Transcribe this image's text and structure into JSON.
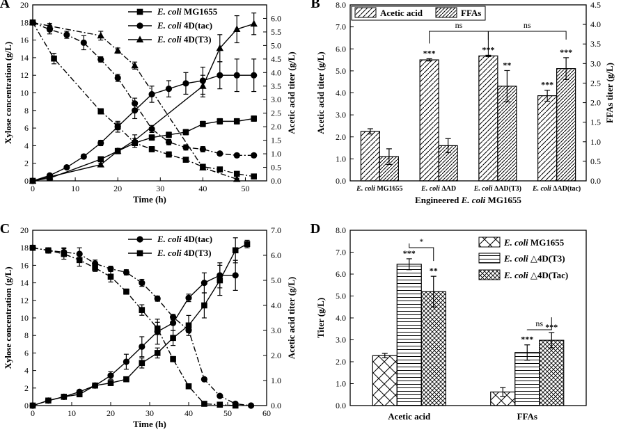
{
  "chart_data": [
    {
      "type": "line",
      "panel_label": "A",
      "xlabel": "Time (h)",
      "ylabel": "Xylose concentration (g/L)",
      "y2label": "Acetic acid titer (g/L)",
      "xlim": [
        0,
        55
      ],
      "ylim": [
        0,
        20
      ],
      "y2lim": [
        0,
        6.5
      ],
      "xticks": [
        0,
        10,
        20,
        30,
        40,
        50
      ],
      "yticks": [
        0,
        2,
        4,
        6,
        8,
        10,
        12,
        14,
        16,
        18,
        20
      ],
      "y2ticks": [
        0.0,
        0.5,
        1.0,
        1.5,
        2.0,
        2.5,
        3.0,
        3.5,
        4.0,
        4.5,
        5.0,
        5.5,
        6.0
      ],
      "legend": [
        {
          "label": "E. coli MG1655",
          "marker": "square"
        },
        {
          "label": "E. coli 4D(tac)",
          "marker": "circle"
        },
        {
          "label": "E. coli 4D(T3)",
          "marker": "triangle"
        }
      ],
      "xylose_series": [
        {
          "name": "E. coli MG1655",
          "marker": "square",
          "x": [
            0,
            5,
            16,
            20,
            24,
            28,
            32,
            36,
            40,
            44,
            48,
            52
          ],
          "y": [
            18,
            13.9,
            7.9,
            6.2,
            4.3,
            3.6,
            3.0,
            2.4,
            1.6,
            1.3,
            0.8,
            0.5
          ],
          "err": [
            0,
            0.6,
            0.3,
            0.4,
            0.5,
            0.3,
            0.3,
            0.2,
            0.2,
            0.1,
            0.1,
            0.1
          ]
        },
        {
          "name": "E. coli 4D(tac)",
          "marker": "circle",
          "x": [
            0,
            4,
            8,
            12,
            16,
            20,
            24,
            28,
            32,
            36,
            40,
            44,
            48,
            52
          ],
          "y": [
            18,
            17.2,
            16.6,
            15.7,
            13.8,
            11.7,
            8.8,
            5.9,
            4.4,
            3.8,
            3.6,
            3.1,
            2.9,
            2.9
          ],
          "err": [
            0,
            0.5,
            0.4,
            0.8,
            0.3,
            0.4,
            0.6,
            0.4,
            0.3,
            0.3,
            0.3,
            0.2,
            0.2,
            0.2
          ]
        },
        {
          "name": "E. coli 4D(T3)",
          "marker": "triangle",
          "x": [
            0,
            4,
            16,
            20,
            24,
            40,
            48
          ],
          "y": [
            18,
            17.6,
            16.5,
            14.8,
            13.1,
            1.5,
            0.2
          ],
          "err": [
            0,
            0.3,
            0.5,
            0.3,
            0.4,
            0.2,
            0.1
          ]
        }
      ],
      "acetic_series": [
        {
          "name": "E. coli MG1655",
          "marker": "square",
          "x": [
            0,
            4,
            16,
            20,
            24,
            28,
            32,
            36,
            40,
            44,
            48,
            52
          ],
          "y": [
            0,
            0.1,
            0.8,
            1.1,
            1.4,
            1.6,
            1.7,
            1.8,
            2.1,
            2.2,
            2.2,
            2.3
          ],
          "err": [
            0,
            0.02,
            0.05,
            0.08,
            0.1,
            0.1,
            0.1,
            0.1,
            0.1,
            0.1,
            0.1,
            0.1
          ]
        },
        {
          "name": "E. coli 4D(tac)",
          "marker": "circle",
          "x": [
            0,
            4,
            8,
            12,
            16,
            20,
            24,
            28,
            32,
            36,
            40,
            44,
            48,
            52
          ],
          "y": [
            0,
            0.2,
            0.5,
            0.9,
            1.4,
            2.0,
            2.6,
            3.2,
            3.4,
            3.6,
            3.7,
            3.9,
            3.9,
            3.9
          ],
          "err": [
            0,
            0.03,
            0.05,
            0.08,
            0.1,
            0.2,
            0.3,
            0.3,
            0.3,
            0.4,
            0.5,
            0.5,
            0.6,
            0.6
          ]
        },
        {
          "name": "E. coli 4D(T3)",
          "marker": "triangle",
          "x": [
            0,
            4,
            16,
            20,
            24,
            40,
            44,
            48,
            52
          ],
          "y": [
            0,
            0.15,
            0.6,
            1.1,
            1.5,
            3.5,
            4.9,
            5.6,
            5.8
          ],
          "err": [
            0,
            0.02,
            0.05,
            0.1,
            0.2,
            0.4,
            0.5,
            0.5,
            0.4
          ]
        }
      ]
    },
    {
      "type": "bar",
      "panel_label": "B",
      "xlabel": "Engineered E. coli MG1655",
      "ylabel": "Acetic acid titer (g/L)",
      "y2label": "FFAs titer (g/L)",
      "ylim": [
        0,
        8
      ],
      "y2lim": [
        0,
        4.5
      ],
      "yticks": [
        0.0,
        1.0,
        2.0,
        3.0,
        4.0,
        5.0,
        6.0,
        7.0,
        8.0
      ],
      "y2ticks": [
        0.0,
        0.5,
        1.0,
        1.5,
        2.0,
        2.5,
        3.0,
        3.5,
        4.0,
        4.5
      ],
      "categories": [
        "E. coli MG1655",
        "E. coli ΔAD",
        "E. coli ΔAD(T3)",
        "E. coli ΔAD(tac)"
      ],
      "series": [
        {
          "name": "Acetic acid",
          "values": [
            2.25,
            5.5,
            5.68,
            3.87
          ],
          "err": [
            0.12,
            0.05,
            0.03,
            0.25
          ],
          "sig": [
            "",
            "***",
            "***",
            "***"
          ]
        },
        {
          "name": "FFAs",
          "values": [
            0.62,
            0.9,
            2.42,
            2.87
          ],
          "err": [
            0.2,
            0.18,
            0.4,
            0.28
          ],
          "sig": [
            "",
            "",
            "**",
            "***"
          ]
        }
      ],
      "brackets": [
        {
          "label": "ns"
        },
        {
          "label": "ns"
        }
      ]
    },
    {
      "type": "line",
      "panel_label": "C",
      "xlabel": "Time (h)",
      "ylabel": "Xylose concentration (g/L)",
      "y2label": "Acetic acid titer (g/L)",
      "xlim": [
        0,
        60
      ],
      "ylim": [
        0,
        20
      ],
      "y2lim": [
        0,
        7
      ],
      "xticks": [
        0,
        10,
        20,
        30,
        40,
        50,
        60
      ],
      "yticks": [
        0,
        2,
        4,
        6,
        8,
        10,
        12,
        14,
        16,
        18,
        20
      ],
      "y2ticks": [
        0.0,
        1.0,
        2.0,
        3.0,
        4.0,
        5.0,
        6.0,
        7.0
      ],
      "legend": [
        {
          "label": "E. coli 4D(tac)",
          "marker": "circle"
        },
        {
          "label": "E. coli 4D(T3)",
          "marker": "square"
        }
      ],
      "xylose_series": [
        {
          "name": "E. coli 4D(tac)",
          "marker": "circle",
          "x": [
            0,
            4,
            8,
            12,
            16,
            20,
            24,
            28,
            32,
            36,
            40,
            44,
            48,
            52,
            56
          ],
          "y": [
            18,
            17.7,
            17.5,
            17.3,
            16.2,
            15.6,
            15.2,
            14.0,
            12.2,
            10.1,
            8.6,
            3.0,
            1.1,
            0.2,
            0
          ],
          "err": [
            0,
            0.3,
            0.5,
            0.7,
            0.4,
            0.3,
            0.3,
            0.4,
            0.3,
            0.3,
            0.3,
            0.2,
            0.1,
            0.1,
            0
          ]
        },
        {
          "name": "E. coli 4D(T3)",
          "marker": "square",
          "x": [
            0,
            4,
            8,
            12,
            16,
            20,
            24,
            28,
            32,
            36,
            40,
            44,
            48,
            52
          ],
          "y": [
            18,
            17.7,
            17.3,
            16.6,
            15.7,
            14.7,
            13.0,
            10.9,
            8.8,
            5.3,
            2.2,
            0.2,
            0.1,
            0
          ],
          "err": [
            0,
            0.3,
            0.6,
            0.7,
            0.4,
            0.6,
            0.3,
            0.6,
            0.7,
            0.3,
            0.2,
            0.1,
            0.1,
            0
          ]
        }
      ],
      "acetic_series": [
        {
          "name": "E. coli 4D(tac)",
          "marker": "circle",
          "x": [
            0,
            4,
            8,
            12,
            16,
            20,
            24,
            28,
            32,
            36,
            40,
            44,
            48,
            52
          ],
          "y": [
            0,
            0.2,
            0.35,
            0.55,
            0.8,
            1.2,
            1.75,
            2.35,
            2.95,
            3.3,
            4.3,
            4.9,
            5.2,
            5.2
          ],
          "err": [
            0,
            0.03,
            0.04,
            0.06,
            0.1,
            0.15,
            0.3,
            0.4,
            0.5,
            0.3,
            0.15,
            0.4,
            0.5,
            0.6
          ]
        },
        {
          "name": "E. coli 4D(T3)",
          "marker": "square",
          "x": [
            0,
            4,
            8,
            12,
            16,
            20,
            24,
            28,
            32,
            36,
            40,
            44,
            48,
            52,
            55
          ],
          "y": [
            0,
            0.2,
            0.35,
            0.45,
            0.8,
            0.9,
            1.05,
            1.7,
            2.1,
            2.7,
            3.2,
            4.0,
            5.0,
            6.2,
            6.45
          ],
          "err": [
            0,
            0.03,
            0.04,
            0.05,
            0.08,
            0.1,
            0.1,
            0.2,
            0.2,
            0.3,
            0.4,
            0.5,
            0.6,
            0.5,
            0.15
          ]
        }
      ]
    },
    {
      "type": "bar",
      "panel_label": "D",
      "xlabel": "",
      "ylabel": "Titer (g/L)",
      "ylim": [
        0,
        8
      ],
      "yticks": [
        0.0,
        1.0,
        2.0,
        3.0,
        4.0,
        5.0,
        6.0,
        7.0,
        8.0
      ],
      "categories": [
        "Acetic acid",
        "FFAs"
      ],
      "series": [
        {
          "name": "E. coli MG1655",
          "pattern": "crosshatch",
          "values": [
            2.28,
            0.62
          ],
          "err": [
            0.1,
            0.2
          ],
          "sig": [
            "",
            ""
          ]
        },
        {
          "name": "E. coli △4D(T3)",
          "pattern": "horizontal",
          "values": [
            6.45,
            2.42
          ],
          "err": [
            0.25,
            0.35
          ],
          "sig": [
            "***",
            "***"
          ]
        },
        {
          "name": "E. coli △4D(Tac)",
          "pattern": "dense-crosshatch",
          "values": [
            5.2,
            2.98
          ],
          "err": [
            0.7,
            0.35
          ],
          "sig": [
            "**",
            "***"
          ]
        }
      ],
      "brackets": [
        {
          "label": "*"
        },
        {
          "label": "ns"
        }
      ]
    }
  ]
}
